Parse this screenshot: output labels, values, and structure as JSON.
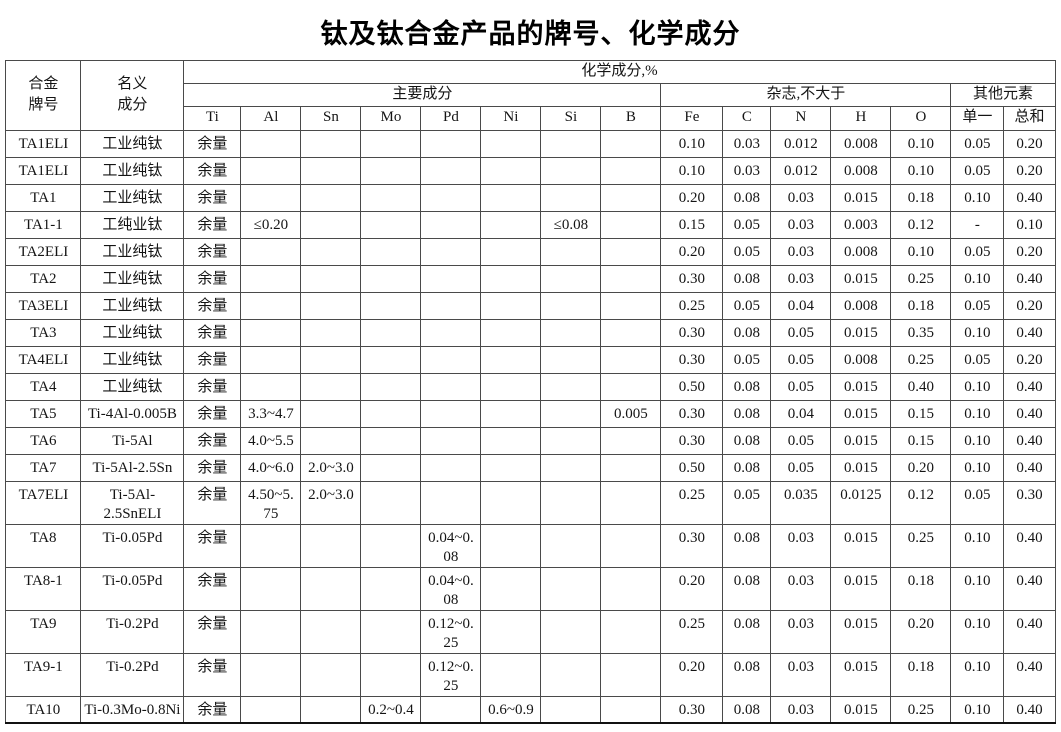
{
  "title": "钛及钛合金产品的牌号、化学成分",
  "table": {
    "header": {
      "alloy": "合金\n牌号",
      "nominal": "名义\n成分",
      "chem_group": "化学成分,%",
      "main_group": "主要成分",
      "impurity_group": "杂志,不大于",
      "other_group": "其他元素",
      "elements": [
        "Ti",
        "Al",
        "Sn",
        "Mo",
        "Pd",
        "Ni",
        "Si",
        "B",
        "Fe",
        "C",
        "N",
        "H",
        "O",
        "单一",
        "总和"
      ]
    },
    "rows": [
      {
        "grade": "TA1ELI",
        "name": "工业纯钛",
        "cells": [
          "余量",
          "",
          "",
          "",
          "",
          "",
          "",
          "",
          "0.10",
          "0.03",
          "0.012",
          "0.008",
          "0.10",
          "0.05",
          "0.20"
        ]
      },
      {
        "grade": "TA1ELI",
        "name": "工业纯钛",
        "cells": [
          "余量",
          "",
          "",
          "",
          "",
          "",
          "",
          "",
          "0.10",
          "0.03",
          "0.012",
          "0.008",
          "0.10",
          "0.05",
          "0.20"
        ]
      },
      {
        "grade": "TA1",
        "name": "工业纯钛",
        "cells": [
          "余量",
          "",
          "",
          "",
          "",
          "",
          "",
          "",
          "0.20",
          "0.08",
          "0.03",
          "0.015",
          "0.18",
          "0.10",
          "0.40"
        ]
      },
      {
        "grade": "TA1-1",
        "name": "工纯业钛",
        "cells": [
          "余量",
          "≤0.20",
          "",
          "",
          "",
          "",
          "≤0.08",
          "",
          "0.15",
          "0.05",
          "0.03",
          "0.003",
          "0.12",
          "-",
          "0.10"
        ]
      },
      {
        "grade": "TA2ELI",
        "name": "工业纯钛",
        "cells": [
          "余量",
          "",
          "",
          "",
          "",
          "",
          "",
          "",
          "0.20",
          "0.05",
          "0.03",
          "0.008",
          "0.10",
          "0.05",
          "0.20"
        ]
      },
      {
        "grade": "TA2",
        "name": "工业纯钛",
        "cells": [
          "余量",
          "",
          "",
          "",
          "",
          "",
          "",
          "",
          "0.30",
          "0.08",
          "0.03",
          "0.015",
          "0.25",
          "0.10",
          "0.40"
        ]
      },
      {
        "grade": "TA3ELI",
        "name": "工业纯钛",
        "cells": [
          "余量",
          "",
          "",
          "",
          "",
          "",
          "",
          "",
          "0.25",
          "0.05",
          "0.04",
          "0.008",
          "0.18",
          "0.05",
          "0.20"
        ]
      },
      {
        "grade": "TA3",
        "name": "工业纯钛",
        "cells": [
          "余量",
          "",
          "",
          "",
          "",
          "",
          "",
          "",
          "0.30",
          "0.08",
          "0.05",
          "0.015",
          "0.35",
          "0.10",
          "0.40"
        ]
      },
      {
        "grade": "TA4ELI",
        "name": "工业纯钛",
        "cells": [
          "余量",
          "",
          "",
          "",
          "",
          "",
          "",
          "",
          "0.30",
          "0.05",
          "0.05",
          "0.008",
          "0.25",
          "0.05",
          "0.20"
        ]
      },
      {
        "grade": "TA4",
        "name": "工业纯钛",
        "cells": [
          "余量",
          "",
          "",
          "",
          "",
          "",
          "",
          "",
          "0.50",
          "0.08",
          "0.05",
          "0.015",
          "0.40",
          "0.10",
          "0.40"
        ]
      },
      {
        "grade": "TA5",
        "name": "Ti-4Al-0.005B",
        "cells": [
          "余量",
          "3.3~4.7",
          "",
          "",
          "",
          "",
          "",
          "0.005",
          "0.30",
          "0.08",
          "0.04",
          "0.015",
          "0.15",
          "0.10",
          "0.40"
        ]
      },
      {
        "grade": "TA6",
        "name": "Ti-5Al",
        "cells": [
          "余量",
          "4.0~5.5",
          "",
          "",
          "",
          "",
          "",
          "",
          "0.30",
          "0.08",
          "0.05",
          "0.015",
          "0.15",
          "0.10",
          "0.40"
        ]
      },
      {
        "grade": "TA7",
        "name": "Ti-5Al-2.5Sn",
        "cells": [
          "余量",
          "4.0~6.0",
          "2.0~3.0",
          "",
          "",
          "",
          "",
          "",
          "0.50",
          "0.08",
          "0.05",
          "0.015",
          "0.20",
          "0.10",
          "0.40"
        ]
      },
      {
        "grade": "TA7ELI",
        "name": "Ti-5Al-2.5SnELI",
        "cells": [
          "余量",
          "4.50~5.\n75",
          "2.0~3.0",
          "",
          "",
          "",
          "",
          "",
          "0.25",
          "0.05",
          "0.035",
          "0.0125",
          "0.12",
          "0.05",
          "0.30"
        ]
      },
      {
        "grade": "TA8",
        "name": "Ti-0.05Pd",
        "cells": [
          "余量",
          "",
          "",
          "",
          "0.04~0.\n08",
          "",
          "",
          "",
          "0.30",
          "0.08",
          "0.03",
          "0.015",
          "0.25",
          "0.10",
          "0.40"
        ]
      },
      {
        "grade": "TA8-1",
        "name": "Ti-0.05Pd",
        "cells": [
          "余量",
          "",
          "",
          "",
          "0.04~0.\n08",
          "",
          "",
          "",
          "0.20",
          "0.08",
          "0.03",
          "0.015",
          "0.18",
          "0.10",
          "0.40"
        ]
      },
      {
        "grade": "TA9",
        "name": "Ti-0.2Pd",
        "cells": [
          "余量",
          "",
          "",
          "",
          "0.12~0.\n25",
          "",
          "",
          "",
          "0.25",
          "0.08",
          "0.03",
          "0.015",
          "0.20",
          "0.10",
          "0.40"
        ]
      },
      {
        "grade": "TA9-1",
        "name": "Ti-0.2Pd",
        "cells": [
          "余量",
          "",
          "",
          "",
          "0.12~0.\n25",
          "",
          "",
          "",
          "0.20",
          "0.08",
          "0.03",
          "0.015",
          "0.18",
          "0.10",
          "0.40"
        ]
      },
      {
        "grade": "TA10",
        "name": "Ti-0.3Mo-0.8Ni",
        "cells": [
          "余量",
          "",
          "",
          "0.2~0.4",
          "",
          "0.6~0.9",
          "",
          "",
          "0.30",
          "0.08",
          "0.03",
          "0.015",
          "0.25",
          "0.10",
          "0.40"
        ]
      }
    ]
  }
}
